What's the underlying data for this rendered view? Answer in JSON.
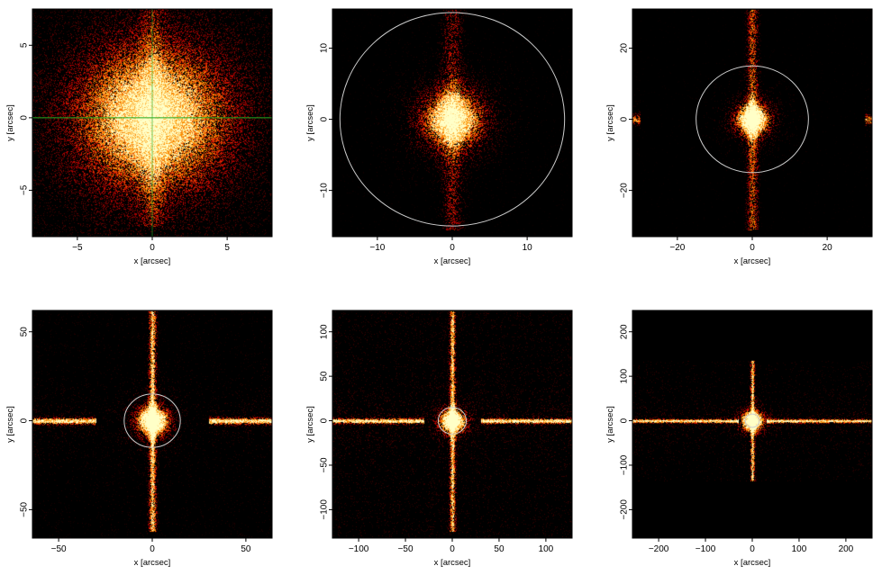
{
  "chart_data": [
    {
      "type": "heatmap",
      "xlabel": "x [arcsec]",
      "ylabel": "y [arcsec]",
      "xlim": [
        -8,
        8
      ],
      "ylim": [
        -8.2,
        7.5
      ],
      "xticks": [
        {
          "value": -5,
          "label": "−5"
        },
        {
          "value": 0,
          "label": "0"
        },
        {
          "value": 5,
          "label": "5"
        }
      ],
      "yticks": [
        {
          "value": -5,
          "label": "−5"
        },
        {
          "value": 0,
          "label": "0"
        },
        {
          "value": 5,
          "label": "5"
        }
      ],
      "circle_radius": null,
      "crosshair": true,
      "crosshair_color": "#22aa22",
      "core_sigma": 1.6,
      "core_amp": 1.0,
      "spike_amp": 0.25,
      "spike_width": 0.55,
      "spike_len": 7.5,
      "spike_h": false,
      "spike_h_gap": 0,
      "bg": 0.05
    },
    {
      "type": "heatmap",
      "xlabel": "x [arcsec]",
      "ylabel": "y [arcsec]",
      "xlim": [
        -16,
        16
      ],
      "ylim": [
        -16.5,
        15.5
      ],
      "xticks": [
        {
          "value": -10,
          "label": "−10"
        },
        {
          "value": 0,
          "label": "0"
        },
        {
          "value": 10,
          "label": "10"
        }
      ],
      "yticks": [
        {
          "value": -10,
          "label": "−10"
        },
        {
          "value": 0,
          "label": "0"
        },
        {
          "value": 10,
          "label": "10"
        }
      ],
      "circle_radius": 15,
      "crosshair": false,
      "core_sigma": 1.3,
      "core_amp": 1.1,
      "spike_amp": 0.35,
      "spike_width": 0.9,
      "spike_len": 15.5,
      "spike_h": false,
      "spike_h_gap": 0,
      "bg": 0.02
    },
    {
      "type": "heatmap",
      "xlabel": "x [arcsec]",
      "ylabel": "y [arcsec]",
      "xlim": [
        -32,
        32
      ],
      "ylim": [
        -33,
        31
      ],
      "xticks": [
        {
          "value": -20,
          "label": "−20"
        },
        {
          "value": 0,
          "label": "0"
        },
        {
          "value": 20,
          "label": "20"
        }
      ],
      "yticks": [
        {
          "value": -20,
          "label": "−20"
        },
        {
          "value": 0,
          "label": "0"
        },
        {
          "value": 20,
          "label": "20"
        }
      ],
      "circle_radius": 15,
      "crosshair": false,
      "core_sigma": 1.4,
      "core_amp": 1.4,
      "spike_amp": 0.6,
      "spike_width": 1.0,
      "spike_len": 31,
      "spike_h": true,
      "spike_h_gap": 30,
      "bg": 0.02
    },
    {
      "type": "heatmap",
      "xlabel": "x [arcsec]",
      "ylabel": "y [arcsec]",
      "xlim": [
        -64,
        64
      ],
      "ylim": [
        -66,
        62
      ],
      "xticks": [
        {
          "value": -50,
          "label": "−50"
        },
        {
          "value": 0,
          "label": "0"
        },
        {
          "value": 50,
          "label": "50"
        }
      ],
      "yticks": [
        {
          "value": -50,
          "label": "−50"
        },
        {
          "value": 0,
          "label": "0"
        },
        {
          "value": 50,
          "label": "50"
        }
      ],
      "circle_radius": 15,
      "crosshair": false,
      "core_sigma": 2.5,
      "core_amp": 1.6,
      "spike_amp": 0.9,
      "spike_width": 1.3,
      "spike_len": 62,
      "spike_h": true,
      "spike_h_gap": 30,
      "bg": 0.05
    },
    {
      "type": "heatmap",
      "xlabel": "x [arcsec]",
      "ylabel": "y [arcsec]",
      "xlim": [
        -128,
        128
      ],
      "ylim": [
        -132,
        124
      ],
      "xticks": [
        {
          "value": -100,
          "label": "−100"
        },
        {
          "value": -50,
          "label": "−50"
        },
        {
          "value": 0,
          "label": "0"
        },
        {
          "value": 50,
          "label": "50"
        },
        {
          "value": 100,
          "label": "100"
        }
      ],
      "yticks": [
        {
          "value": -100,
          "label": "−100"
        },
        {
          "value": -50,
          "label": "−50"
        },
        {
          "value": 0,
          "label": "0"
        },
        {
          "value": 50,
          "label": "50"
        },
        {
          "value": 100,
          "label": "100"
        }
      ],
      "circle_radius": 15,
      "crosshair": false,
      "core_sigma": 4,
      "core_amp": 1.6,
      "spike_amp": 0.9,
      "spike_width": 2,
      "spike_len": 124,
      "spike_h": true,
      "spike_h_gap": 30,
      "bg": 0.08
    },
    {
      "type": "heatmap",
      "xlabel": "x [arcsec]",
      "ylabel": "y [arcsec]",
      "xlim": [
        -256,
        256
      ],
      "ylim": [
        -264,
        248
      ],
      "xticks": [
        {
          "value": -200,
          "label": "−200"
        },
        {
          "value": -100,
          "label": "−100"
        },
        {
          "value": 0,
          "label": "0"
        },
        {
          "value": 100,
          "label": "100"
        },
        {
          "value": 200,
          "label": "200"
        }
      ],
      "yticks": [
        {
          "value": -200,
          "label": "−200"
        },
        {
          "value": -100,
          "label": "−100"
        },
        {
          "value": 0,
          "label": "0"
        },
        {
          "value": 100,
          "label": "100"
        },
        {
          "value": 200,
          "label": "200"
        }
      ],
      "circle_radius": 15,
      "crosshair": false,
      "core_sigma": 7,
      "core_amp": 1.6,
      "spike_amp": 0.9,
      "spike_width": 3,
      "spike_len": 140,
      "spike_h": true,
      "spike_h_gap": 30,
      "bg": 0.06,
      "data_ylim": [
        -135,
        135
      ]
    }
  ]
}
